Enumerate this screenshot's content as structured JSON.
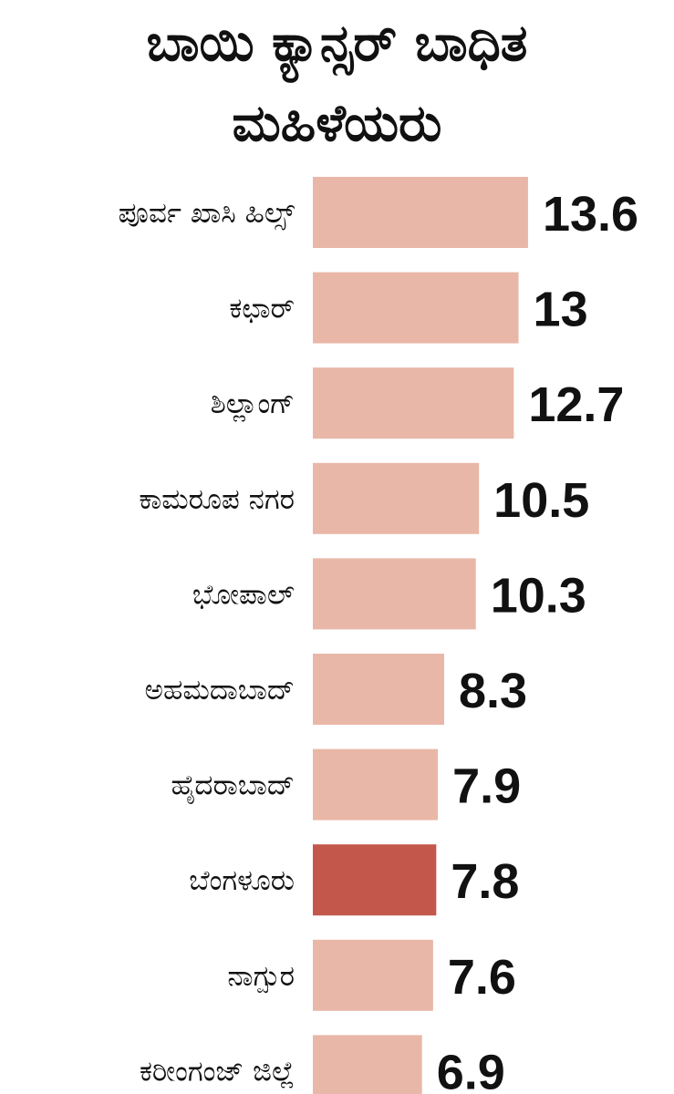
{
  "chart_data": {
    "type": "bar",
    "orientation": "horizontal",
    "title_lines": [
      "ಬಾಯಿ ಕ್ಯಾನ್ಸರ್ ಬಾಧಿತ",
      "ಮಹಿಳೆಯರು"
    ],
    "categories": [
      "ಪೂರ್ವ ಖಾಸಿ ಹಿಲ್ಸ್",
      "ಕಛಾರ್",
      "ಶಿಲ್ಲಾಂಗ್",
      "ಕಾಮರೂಪ ನಗರ",
      "ಭೋಪಾಲ್",
      "ಅಹಮದಾಬಾದ್",
      "ಹೈದರಾಬಾದ್",
      "ಬೆಂಗಳೂರು",
      "ನಾಗ್ಪುರ",
      "ಕರೀಂಗಂಜ್ ಜಿಲ್ಲೆ"
    ],
    "values": [
      13.6,
      13,
      12.7,
      10.5,
      10.3,
      8.3,
      7.9,
      7.8,
      7.6,
      6.9
    ],
    "value_labels": [
      "13.6",
      "13",
      "12.7",
      "10.5",
      "10.3",
      "8.3",
      "7.9",
      "7.8",
      "7.6",
      "6.9"
    ],
    "highlight_index": 7,
    "colors": {
      "bar": "#e9b7a8",
      "highlight": "#c4574b",
      "text": "#111111"
    },
    "grid": false,
    "legend": "none"
  }
}
